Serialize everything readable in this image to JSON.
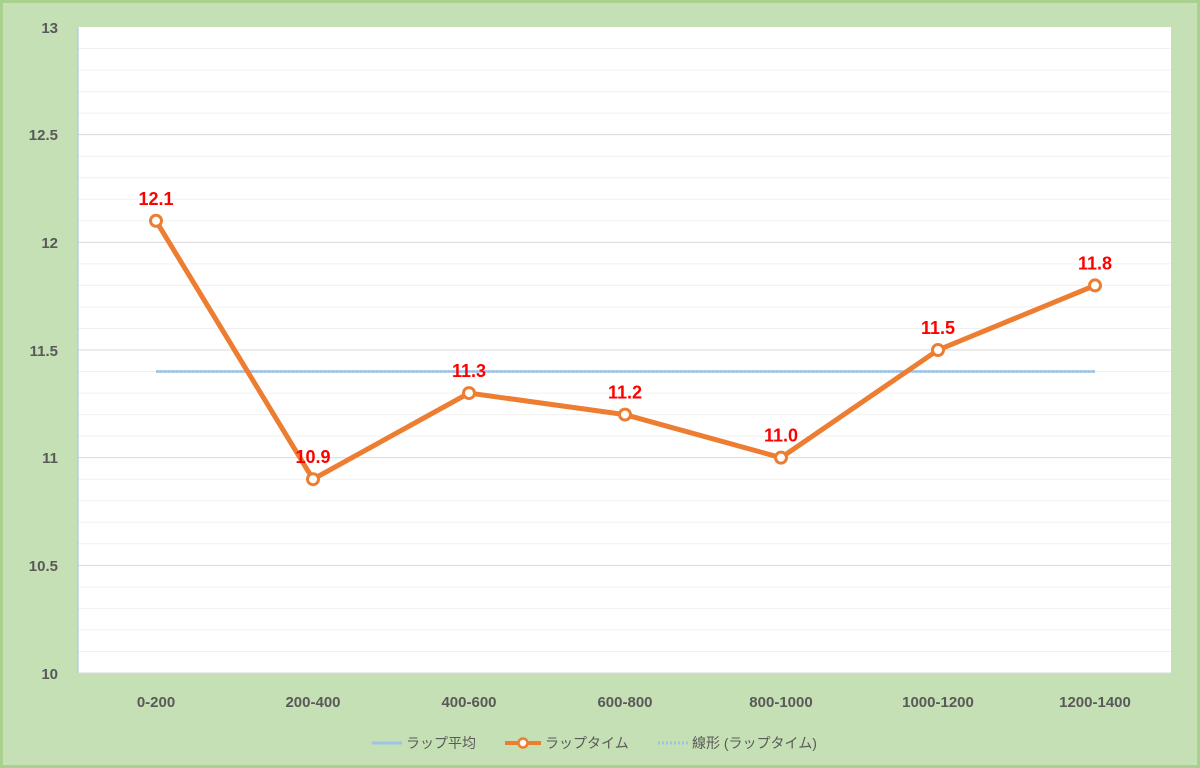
{
  "chart_data": {
    "type": "line",
    "categories": [
      "0-200",
      "200-400",
      "400-600",
      "600-800",
      "800-1000",
      "1000-1200",
      "1200-1400"
    ],
    "series": [
      {
        "name": "ラップ平均",
        "values": [
          11.4,
          11.4,
          11.4,
          11.4,
          11.4,
          11.4,
          11.4
        ],
        "color": "#9dc3e6",
        "style": "solid"
      },
      {
        "name": "ラップタイム",
        "values": [
          12.1,
          10.9,
          11.3,
          11.2,
          11.0,
          11.5,
          11.8
        ],
        "color": "#ed7d31",
        "style": "solid-markers",
        "data_labels": [
          "12.1",
          "10.9",
          "11.3",
          "11.2",
          "11.0",
          "11.5",
          "11.8"
        ]
      },
      {
        "name": "線形 (ラップタイム)",
        "values": [
          11.4,
          11.4,
          11.4,
          11.4,
          11.4,
          11.4,
          11.4
        ],
        "color": "#9dc3e6",
        "style": "dotted"
      }
    ],
    "yticks": [
      "13",
      "12.5",
      "12",
      "11.5",
      "11",
      "10.5",
      "10"
    ],
    "ylim": [
      10,
      13
    ],
    "grid": true,
    "legend_position": "bottom",
    "data_label_color": "#ff0000"
  }
}
